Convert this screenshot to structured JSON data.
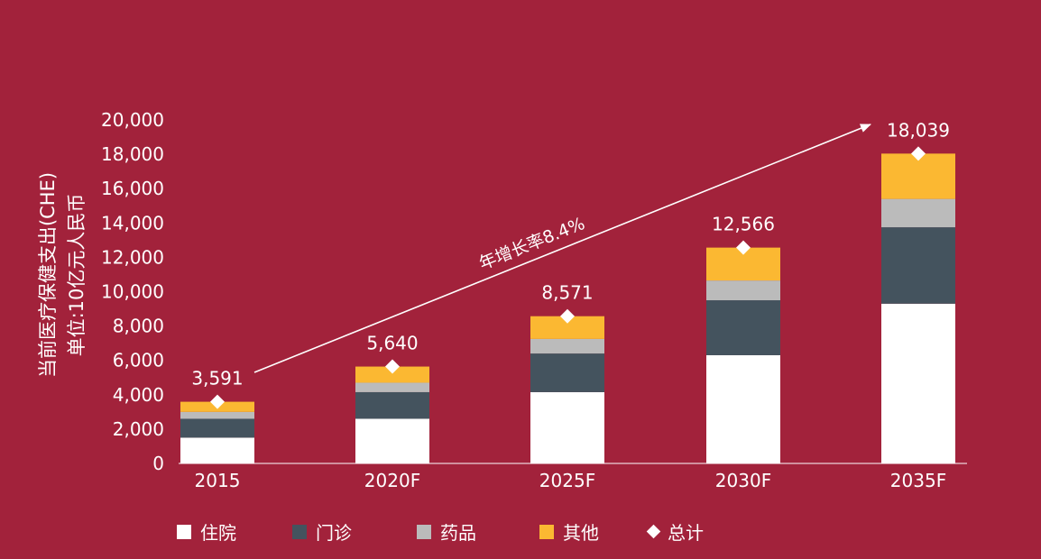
{
  "chart_data": {
    "type": "bar",
    "stacked": true,
    "categories": [
      "2015",
      "2020F",
      "2025F",
      "2030F",
      "2035F"
    ],
    "series": [
      {
        "name": "住院",
        "color": "#FFFFFF",
        "values": [
          1500,
          2600,
          4150,
          6300,
          9300
        ]
      },
      {
        "name": "门诊",
        "color": "#44535E",
        "values": [
          1100,
          1550,
          2250,
          3200,
          4450
        ]
      },
      {
        "name": "药品",
        "color": "#BBBBBB",
        "values": [
          400,
          550,
          850,
          1150,
          1650
        ]
      },
      {
        "name": "其他",
        "color": "#FBB832",
        "values": [
          591,
          940,
          1321,
          1916,
          2639
        ]
      }
    ],
    "totals": {
      "name": "总计",
      "values": [
        3591,
        5640,
        8571,
        12566,
        18039
      ],
      "labels": [
        "3,591",
        "5,640",
        "8,571",
        "12,566",
        "18,039"
      ]
    },
    "yticks": [
      "0",
      "2,000",
      "4,000",
      "6,000",
      "8,000",
      "10,000",
      "12,000",
      "14,000",
      "16,000",
      "18,000",
      "20,000"
    ],
    "ylim": [
      0,
      20000
    ],
    "ylabel_line1": "当前医疗保健支出(CHE)",
    "ylabel_line2": "单位:10亿元人民币",
    "annotation": "年增长率8.4%",
    "legend_position": "bottom",
    "grid": false
  }
}
